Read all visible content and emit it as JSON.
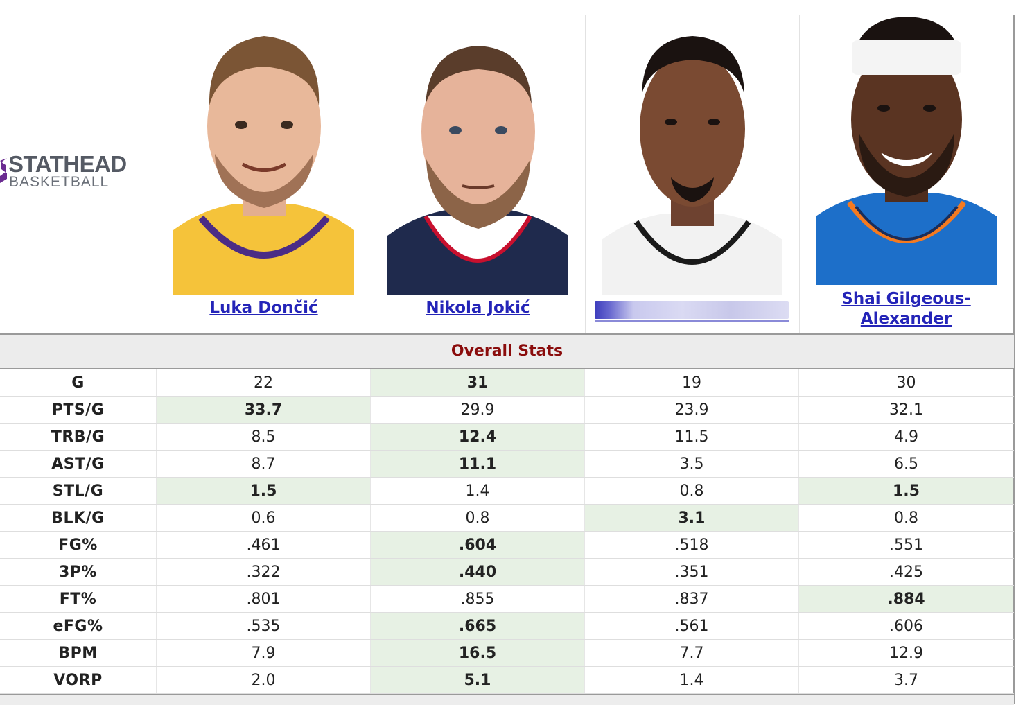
{
  "brand": {
    "main": "STATHEAD",
    "sub": "BASKETBALL",
    "accent": "#6b2c91"
  },
  "players": [
    {
      "name": "Luka Dončić",
      "jersey": "#f5c33a",
      "trim": "#4b2c85",
      "skin": "#e8b89a",
      "hair": "#7b5535"
    },
    {
      "name": "Nikola Jokić",
      "jersey": "#1f2a4d",
      "trim": "#c8102e",
      "skin": "#e6b39a",
      "hair": "#5a3d2b"
    },
    {
      "name": "",
      "jersey": "#f2f2f2",
      "trim": "#1a1a1a",
      "skin": "#7a4a32",
      "hair": "#1a1210"
    },
    {
      "name": "Shai Gilgeous-Alexander",
      "jersey": "#1d6fc9",
      "trim": "#f47a20",
      "skin": "#5a3422",
      "hair": "#1a1210"
    }
  ],
  "section_title": "Overall Stats",
  "highlight_color": "#e7f1e4",
  "rows": [
    {
      "label": "G",
      "values": [
        "22",
        "31",
        "19",
        "30"
      ],
      "best": [
        1
      ]
    },
    {
      "label": "PTS/G",
      "values": [
        "33.7",
        "29.9",
        "23.9",
        "32.1"
      ],
      "best": [
        0
      ]
    },
    {
      "label": "TRB/G",
      "values": [
        "8.5",
        "12.4",
        "11.5",
        "4.9"
      ],
      "best": [
        1
      ]
    },
    {
      "label": "AST/G",
      "values": [
        "8.7",
        "11.1",
        "3.5",
        "6.5"
      ],
      "best": [
        1
      ]
    },
    {
      "label": "STL/G",
      "values": [
        "1.5",
        "1.4",
        "0.8",
        "1.5"
      ],
      "best": [
        0,
        3
      ]
    },
    {
      "label": "BLK/G",
      "values": [
        "0.6",
        "0.8",
        "3.1",
        "0.8"
      ],
      "best": [
        2
      ]
    },
    {
      "label": "FG%",
      "values": [
        ".461",
        ".604",
        ".518",
        ".551"
      ],
      "best": [
        1
      ]
    },
    {
      "label": "3P%",
      "values": [
        ".322",
        ".440",
        ".351",
        ".425"
      ],
      "best": [
        1
      ]
    },
    {
      "label": "FT%",
      "values": [
        ".801",
        ".855",
        ".837",
        ".884"
      ],
      "best": [
        3
      ]
    },
    {
      "label": "eFG%",
      "values": [
        ".535",
        ".665",
        ".561",
        ".606"
      ],
      "best": [
        1
      ]
    },
    {
      "label": "BPM",
      "values": [
        "7.9",
        "16.5",
        "7.7",
        "12.9"
      ],
      "best": [
        1
      ]
    },
    {
      "label": "VORP",
      "values": [
        "2.0",
        "5.1",
        "1.4",
        "3.7"
      ],
      "best": [
        1
      ]
    }
  ]
}
